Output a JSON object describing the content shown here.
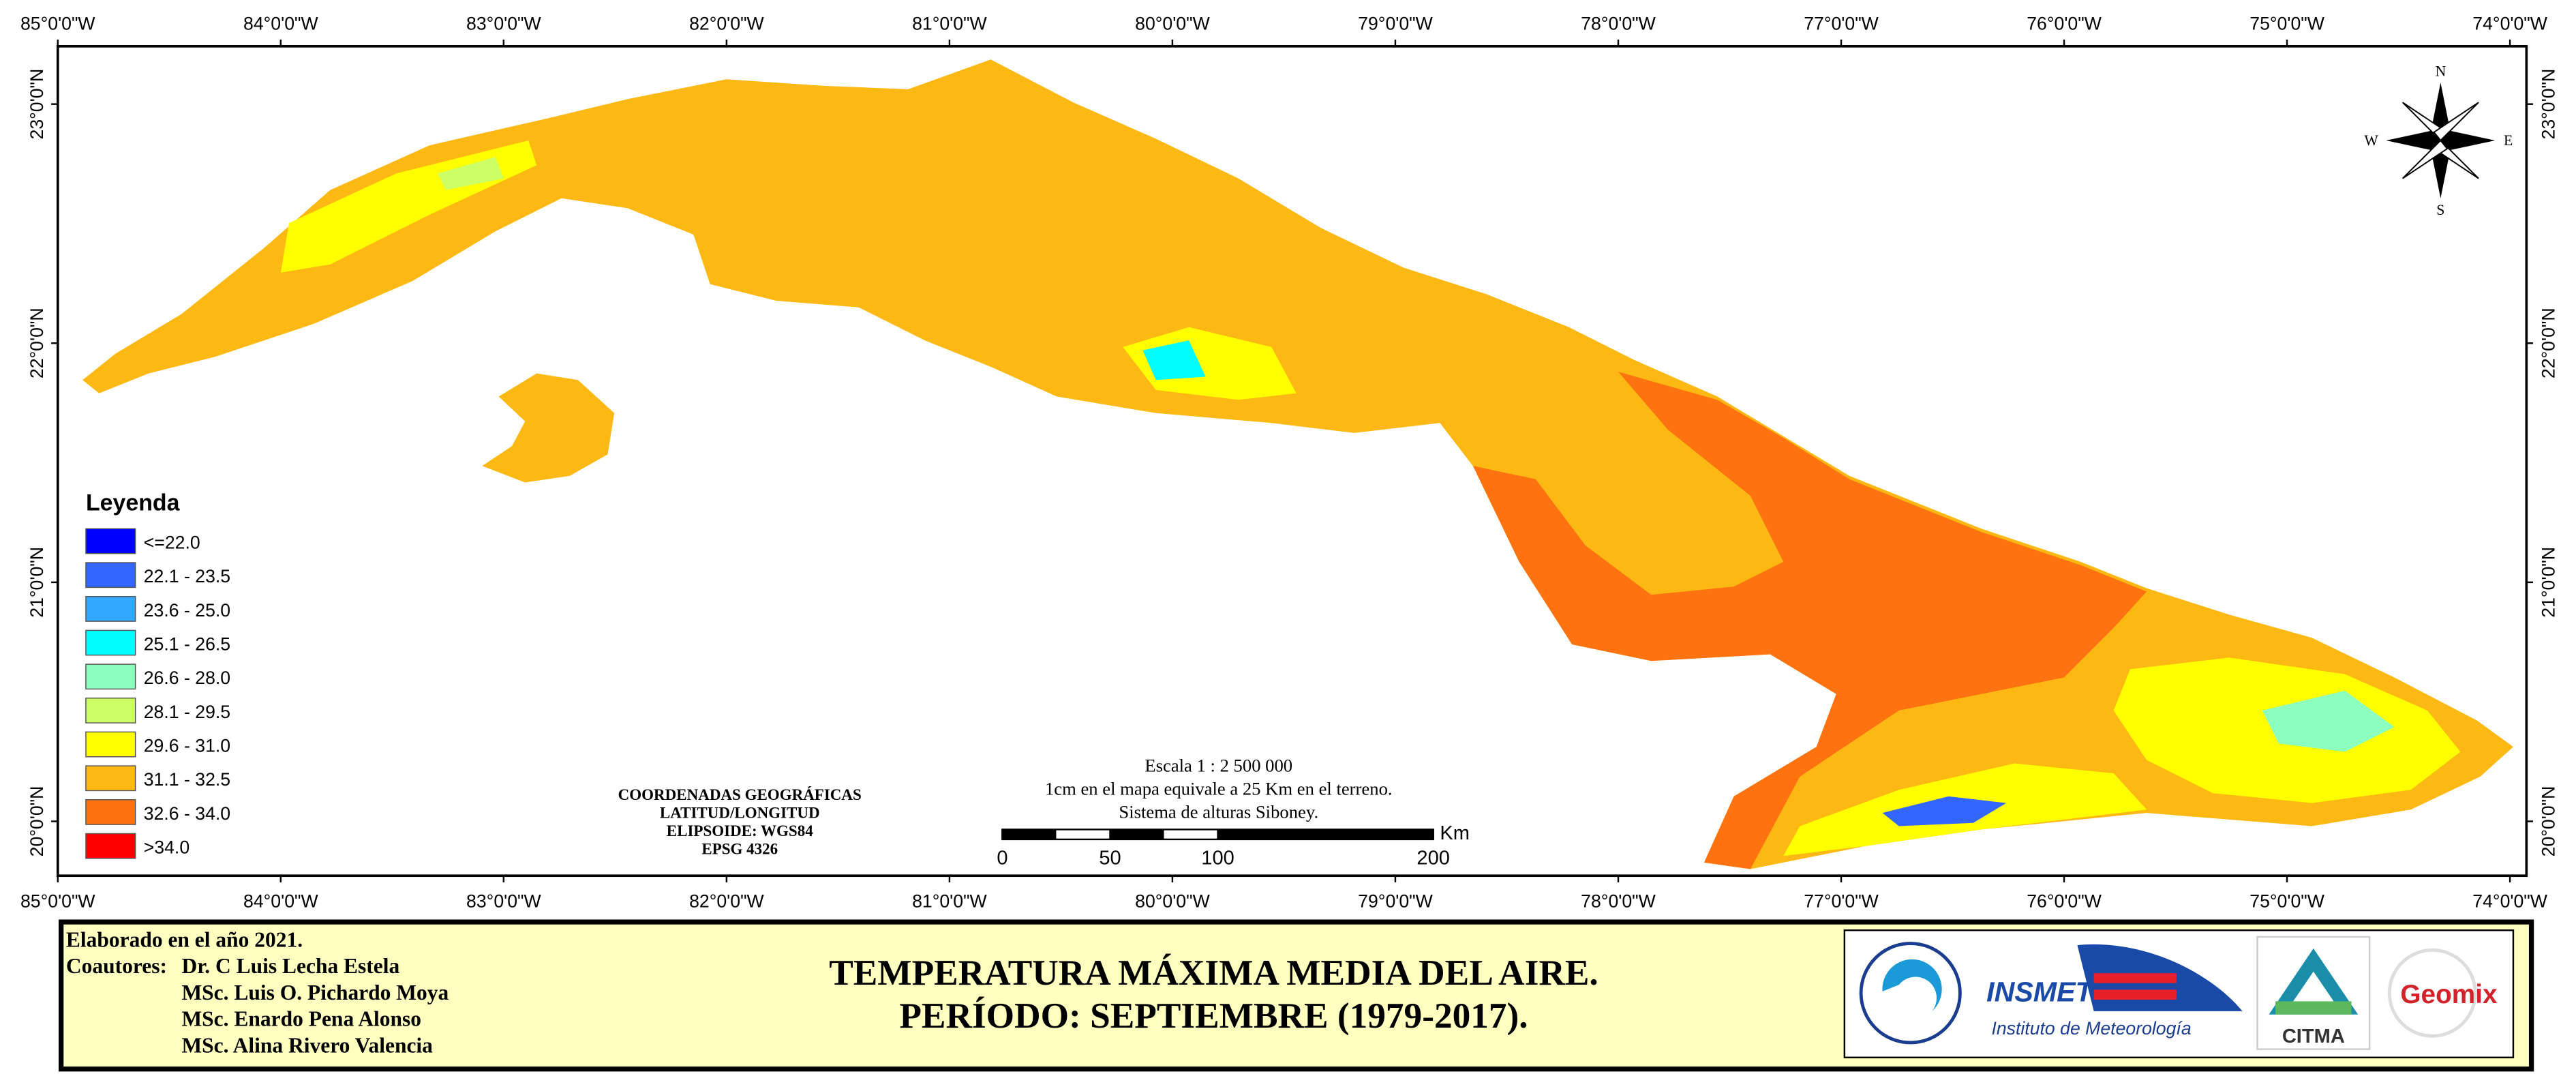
{
  "map": {
    "longitudes": [
      "85°0'0\"W",
      "84°0'0\"W",
      "83°0'0\"W",
      "82°0'0\"W",
      "81°0'0\"W",
      "80°0'0\"W",
      "79°0'0\"W",
      "78°0'0\"W",
      "77°0'0\"W",
      "76°0'0\"W",
      "75°0'0\"W",
      "74°0'0\"W"
    ],
    "latitudes": [
      "23°0'0\"N",
      "22°0'0\"N",
      "21°0'0\"N",
      "20°0'0\"N"
    ],
    "compass": {
      "north": "N",
      "south": "S",
      "east": "E",
      "west": "W"
    }
  },
  "legend": {
    "title": "Leyenda",
    "items": [
      {
        "label": "<=22.0",
        "color": "#0000ff"
      },
      {
        "label": "22.1 - 23.5",
        "color": "#3366ff"
      },
      {
        "label": "23.6 - 25.0",
        "color": "#33a8ff"
      },
      {
        "label": "25.1 - 26.5",
        "color": "#00ffff"
      },
      {
        "label": "26.6 - 28.0",
        "color": "#8cffbe"
      },
      {
        "label": "28.1 - 29.5",
        "color": "#ccff66"
      },
      {
        "label": "29.6 - 31.0",
        "color": "#ffff00"
      },
      {
        "label": "31.1 - 32.5",
        "color": "#fdb813"
      },
      {
        "label": "32.6 - 34.0",
        "color": "#fe7210"
      },
      {
        "label": ">34.0",
        "color": "#ff0000"
      }
    ]
  },
  "coordinates": [
    "COORDENADAS GEOGRÁFICAS",
    "LATITUD/LONGITUD",
    "ELIPSOIDE: WGS84",
    "EPSG 4326"
  ],
  "scale": {
    "lines": [
      "Escala 1 : 2 500 000",
      "1cm en el mapa equivale a 25 Km en el terreno.",
      "Sistema de alturas Siboney."
    ],
    "ticks": [
      0,
      50,
      100,
      200
    ],
    "unit": "Km"
  },
  "footer": {
    "year": "Elaborado en el año 2021.",
    "coauthors_label": "Coautores:",
    "coauthors": [
      "Dr. C Luis Lecha Estela",
      "MSc. Luis O. Pichardo Moya",
      "MSc. Enardo Pena Alonso",
      "MSc. Alina Rivero Valencia"
    ],
    "title": [
      "TEMPERATURA MÁXIMA MEDIA DEL AIRE.",
      "PERÍODO: SEPTIEMBRE (1979-2017)."
    ],
    "logos": {
      "insmet": "INSMET",
      "insmet_name": "Instituto de Meteorología",
      "citma": "CITMA",
      "geomix": "Geomix"
    }
  }
}
